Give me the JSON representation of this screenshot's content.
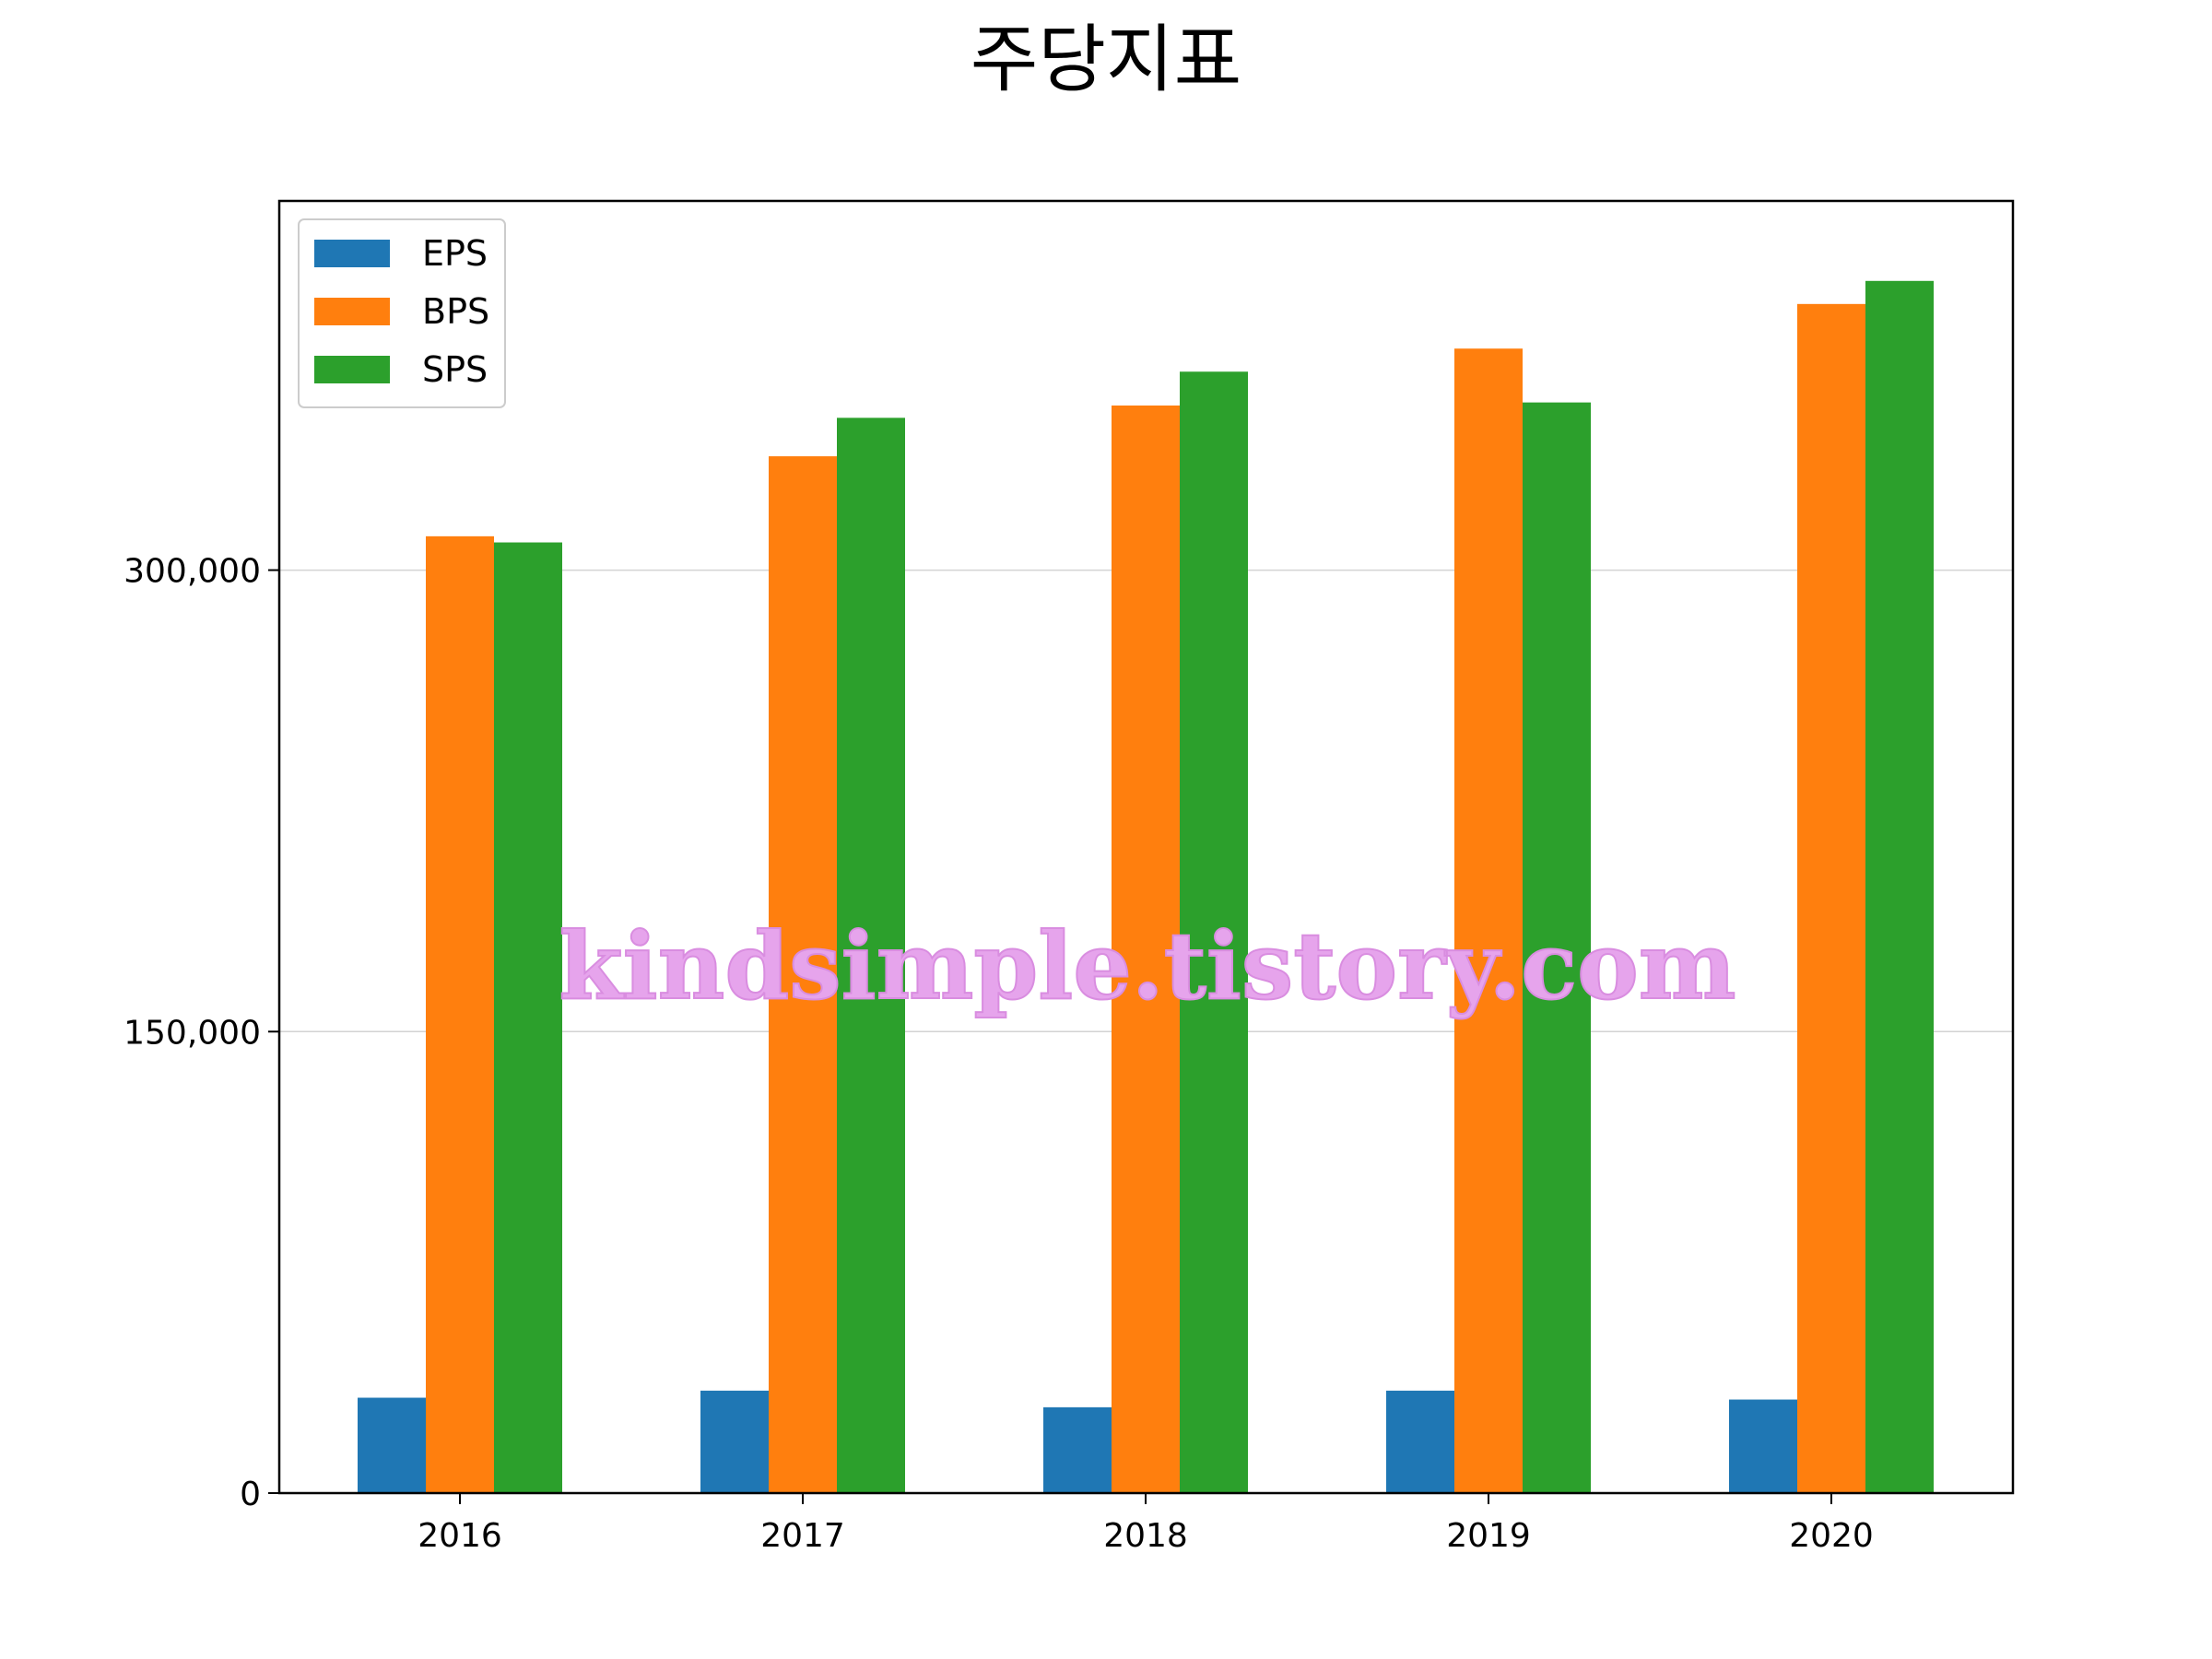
{
  "chart_data": {
    "type": "bar",
    "title": "주당지표",
    "xlabel": "",
    "ylabel": "",
    "categories": [
      "2016",
      "2017",
      "2018",
      "2019",
      "2020"
    ],
    "series": [
      {
        "name": "EPS",
        "color": "#1f77b4",
        "values": [
          31000,
          33300,
          27900,
          33300,
          30400
        ]
      },
      {
        "name": "BPS",
        "color": "#ff7f0e",
        "values": [
          311000,
          337000,
          353500,
          372000,
          386500
        ]
      },
      {
        "name": "SPS",
        "color": "#2ca02c",
        "values": [
          309000,
          349500,
          364500,
          354500,
          394000
        ]
      }
    ],
    "ylim": [
      0,
      420000
    ],
    "yticks": [
      0,
      150000,
      300000
    ],
    "ytick_labels": [
      "0",
      "150,000",
      "300,000"
    ],
    "grid": {
      "y": true,
      "x": false
    },
    "legend_position": "top-left",
    "watermark": "kindsimple.tistory.com"
  }
}
